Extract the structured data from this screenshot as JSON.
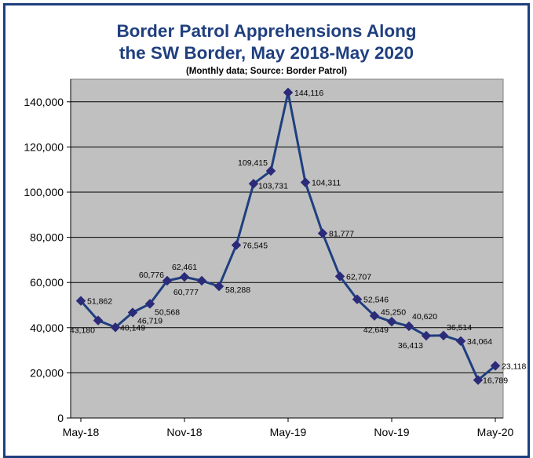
{
  "chart_data": {
    "type": "line",
    "title": "Border Patrol Apprehensions Along",
    "title_line2": "the SW Border, May 2018-May 2020",
    "subtitle": "(Monthly data; Source: Border Patrol)",
    "xlabel": "",
    "ylabel": "",
    "ylim": [
      0,
      150000
    ],
    "yticks": [
      0,
      20000,
      40000,
      60000,
      80000,
      100000,
      120000,
      140000
    ],
    "ytick_labels": [
      "0",
      "20,000",
      "40,000",
      "60,000",
      "80,000",
      "100,000",
      "120,000",
      "140,000"
    ],
    "xtick_labels": [
      {
        "index": 0,
        "label": "May-18"
      },
      {
        "index": 6,
        "label": "Nov-18"
      },
      {
        "index": 12,
        "label": "May-19"
      },
      {
        "index": 18,
        "label": "Nov-19"
      },
      {
        "index": 24,
        "label": "May-20"
      }
    ],
    "grid": true,
    "colors": {
      "line": "#1f3f7f",
      "marker": "#2b2b7a",
      "plot_bg": "#c0c0c0",
      "title": "#1f3f7f",
      "frame": "#1f3f7f"
    },
    "series": [
      {
        "values": [
          51862,
          43180,
          40149,
          46719,
          50568,
          60776,
          62461,
          60777,
          58288,
          76545,
          103731,
          109415,
          144116,
          104311,
          81777,
          62707,
          52546,
          45250,
          42649,
          40620,
          36413,
          36514,
          34064,
          16789,
          23118
        ],
        "labels": [
          "51,862",
          "43,180",
          "40,149",
          "46,719",
          "50,568",
          "60,776",
          "62,461",
          "60,777",
          "58,288",
          "76,545",
          "103,731",
          "109,415",
          "144,116",
          "104,311",
          "81,777",
          "62,707",
          "52,546",
          "45,250",
          "42,649",
          "40,620",
          "36,413",
          "36,514",
          "34,064",
          "16,789",
          "23,118"
        ]
      }
    ]
  }
}
